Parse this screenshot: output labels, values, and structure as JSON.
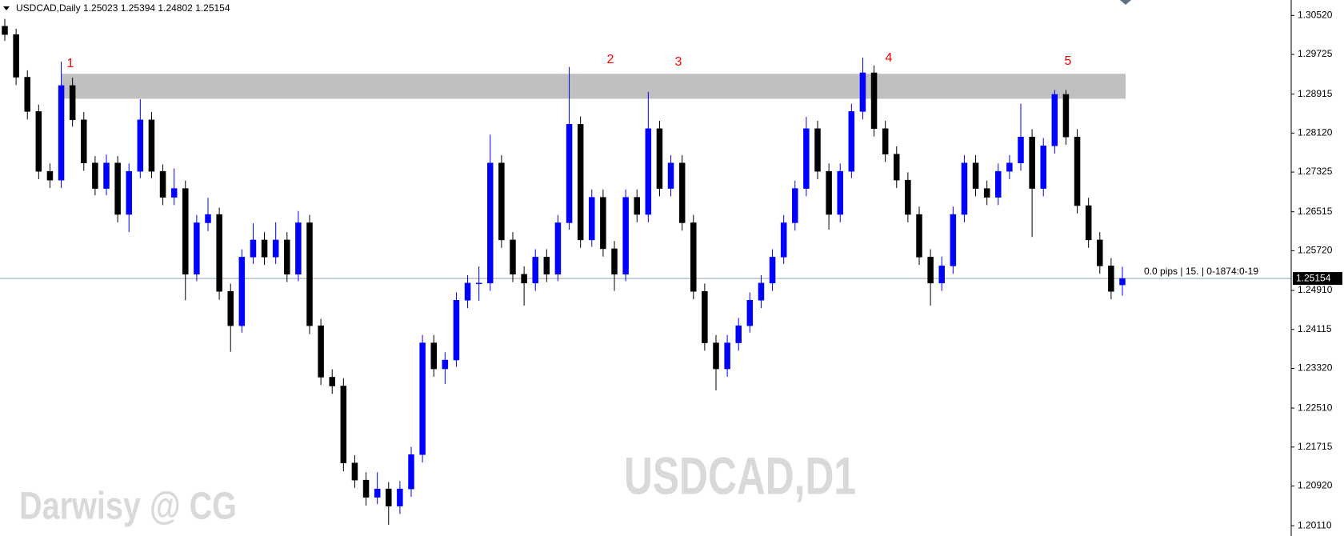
{
  "chart_data": {
    "type": "candlestick",
    "header": "USDCAD,Daily  1.25023 1.25394 1.24802 1.25154",
    "watermark": "USDCAD,D1",
    "credit": "Darwisy @ CG",
    "info": "0.0 pips | 15. | 0-1874:0-19",
    "annotations": [
      "1",
      "2",
      "3",
      "4",
      "5"
    ],
    "up_color": "#0000ff",
    "down_color": "#000000",
    "price_line": 1.25154,
    "zone": [
      1.2882,
      1.2933
    ],
    "ylim": [
      1.199,
      1.30835
    ],
    "yticks": [
      {
        "value": 1.3052,
        "label": "1.30520"
      },
      1.29725,
      1.28915,
      {
        "value": 1.2812,
        "label": "1.28120"
      },
      1.27325,
      1.26515,
      {
        "value": 1.2572,
        "label": "1.25720"
      },
      {
        "value": 1.2491,
        "label": "1.24910"
      },
      1.24115,
      {
        "value": 1.2332,
        "label": "1.23320"
      },
      {
        "value": 1.2251,
        "label": "1.22510"
      },
      1.21715,
      {
        "value": 1.2092,
        "label": "1.20920"
      },
      {
        "value": 1.2011,
        "label": "1.20110"
      }
    ],
    "ohlc": [
      [
        1.303,
        1.3045,
        1.3,
        1.3013
      ],
      [
        1.3013,
        1.3025,
        1.291,
        1.2926
      ],
      [
        1.2926,
        1.294,
        1.284,
        1.2856
      ],
      [
        1.2856,
        1.287,
        1.2718,
        1.2734
      ],
      [
        1.2734,
        1.275,
        1.27,
        1.2716
      ],
      [
        1.2716,
        1.2958,
        1.27,
        1.2909
      ],
      [
        1.2909,
        1.2925,
        1.2825,
        1.2839
      ],
      [
        1.2839,
        1.2855,
        1.2735,
        1.2751
      ],
      [
        1.2751,
        1.2765,
        1.2685,
        1.2699
      ],
      [
        1.2699,
        1.2768,
        1.2685,
        1.2751
      ],
      [
        1.2751,
        1.2765,
        1.263,
        1.2646
      ],
      [
        1.2646,
        1.275,
        1.261,
        1.2734
      ],
      [
        1.2734,
        1.2881,
        1.272,
        1.2839
      ],
      [
        1.2839,
        1.2855,
        1.272,
        1.2734
      ],
      [
        1.2734,
        1.2748,
        1.2665,
        1.2681
      ],
      [
        1.2681,
        1.274,
        1.2665,
        1.2699
      ],
      [
        1.2699,
        1.2715,
        1.2471,
        1.2524
      ],
      [
        1.2524,
        1.2645,
        1.251,
        1.2629
      ],
      [
        1.2629,
        1.268,
        1.2612,
        1.2646
      ],
      [
        1.2646,
        1.266,
        1.2472,
        1.2489
      ],
      [
        1.2489,
        1.2505,
        1.2366,
        1.2419
      ],
      [
        1.2419,
        1.2575,
        1.2405,
        1.2559
      ],
      [
        1.2559,
        1.2628,
        1.2545,
        1.2594
      ],
      [
        1.2594,
        1.261,
        1.2543,
        1.2559
      ],
      [
        1.2559,
        1.263,
        1.2545,
        1.2594
      ],
      [
        1.2594,
        1.261,
        1.2508,
        1.2524
      ],
      [
        1.2524,
        1.2653,
        1.251,
        1.2629
      ],
      [
        1.2629,
        1.2645,
        1.2402,
        1.2419
      ],
      [
        1.2419,
        1.2433,
        1.2298,
        1.2314
      ],
      [
        1.2314,
        1.233,
        1.228,
        1.2296
      ],
      [
        1.2296,
        1.2312,
        1.2122,
        1.2139
      ],
      [
        1.2139,
        1.2155,
        1.2088,
        1.2104
      ],
      [
        1.2104,
        1.212,
        1.2052,
        1.2069
      ],
      [
        1.2069,
        1.212,
        1.2055,
        1.2086
      ],
      [
        1.2086,
        1.21,
        1.2013,
        1.2051
      ],
      [
        1.2051,
        1.2102,
        1.2035,
        1.2086
      ],
      [
        1.2086,
        1.2172,
        1.207,
        1.2156
      ],
      [
        1.2156,
        1.24,
        1.214,
        1.2384
      ],
      [
        1.2384,
        1.24,
        1.2315,
        1.2331
      ],
      [
        1.2331,
        1.2365,
        1.23,
        1.2349
      ],
      [
        1.2349,
        1.2487,
        1.2335,
        1.2471
      ],
      [
        1.2471,
        1.2522,
        1.2455,
        1.2506
      ],
      [
        1.2506,
        1.254,
        1.247,
        1.2506
      ],
      [
        1.2506,
        1.2809,
        1.249,
        1.2751
      ],
      [
        1.2751,
        1.2767,
        1.2578,
        1.2594
      ],
      [
        1.2594,
        1.261,
        1.2508,
        1.2524
      ],
      [
        1.2524,
        1.254,
        1.246,
        1.2506
      ],
      [
        1.2506,
        1.2575,
        1.249,
        1.2559
      ],
      [
        1.2559,
        1.2575,
        1.2508,
        1.2524
      ],
      [
        1.2524,
        1.2645,
        1.251,
        1.2629
      ],
      [
        1.2629,
        1.2947,
        1.2615,
        1.283
      ],
      [
        1.283,
        1.2846,
        1.2578,
        1.2594
      ],
      [
        1.2594,
        1.2697,
        1.258,
        1.2681
      ],
      [
        1.2681,
        1.2697,
        1.256,
        1.2576
      ],
      [
        1.2576,
        1.2592,
        1.249,
        1.2524
      ],
      [
        1.2524,
        1.2697,
        1.251,
        1.2681
      ],
      [
        1.2681,
        1.2697,
        1.263,
        1.2646
      ],
      [
        1.2646,
        1.2896,
        1.263,
        1.2821
      ],
      [
        1.2821,
        1.2837,
        1.2683,
        1.2699
      ],
      [
        1.2699,
        1.2767,
        1.2683,
        1.2751
      ],
      [
        1.2751,
        1.2767,
        1.2613,
        1.2629
      ],
      [
        1.2629,
        1.2645,
        1.2473,
        1.2489
      ],
      [
        1.2489,
        1.2505,
        1.2368,
        1.2384
      ],
      [
        1.2384,
        1.24,
        1.2287,
        1.2331
      ],
      [
        1.2331,
        1.24,
        1.2315,
        1.2384
      ],
      [
        1.2384,
        1.2435,
        1.2368,
        1.2419
      ],
      [
        1.2419,
        1.2487,
        1.2405,
        1.2471
      ],
      [
        1.2471,
        1.2522,
        1.2455,
        1.2506
      ],
      [
        1.2506,
        1.2575,
        1.249,
        1.2559
      ],
      [
        1.2559,
        1.2645,
        1.2545,
        1.2629
      ],
      [
        1.2629,
        1.2715,
        1.2613,
        1.2699
      ],
      [
        1.2699,
        1.2845,
        1.2683,
        1.2821
      ],
      [
        1.2821,
        1.2837,
        1.2718,
        1.2734
      ],
      [
        1.2734,
        1.275,
        1.2615,
        1.2646
      ],
      [
        1.2646,
        1.275,
        1.263,
        1.2734
      ],
      [
        1.2734,
        1.2872,
        1.272,
        1.2856
      ],
      [
        1.2856,
        1.2966,
        1.284,
        1.2935
      ],
      [
        1.2935,
        1.295,
        1.2805,
        1.2821
      ],
      [
        1.2821,
        1.2837,
        1.2753,
        1.2769
      ],
      [
        1.2769,
        1.2785,
        1.27,
        1.2716
      ],
      [
        1.2716,
        1.2732,
        1.263,
        1.2646
      ],
      [
        1.2646,
        1.2662,
        1.2543,
        1.2559
      ],
      [
        1.2559,
        1.2575,
        1.246,
        1.2506
      ],
      [
        1.2506,
        1.256,
        1.249,
        1.2541
      ],
      [
        1.2541,
        1.2662,
        1.2525,
        1.2646
      ],
      [
        1.2646,
        1.2767,
        1.263,
        1.2751
      ],
      [
        1.2751,
        1.2767,
        1.2683,
        1.2699
      ],
      [
        1.2699,
        1.2715,
        1.2665,
        1.2681
      ],
      [
        1.2681,
        1.275,
        1.2665,
        1.2734
      ],
      [
        1.2734,
        1.2767,
        1.2718,
        1.2751
      ],
      [
        1.2751,
        1.2872,
        1.2735,
        1.2804
      ],
      [
        1.2804,
        1.282,
        1.26,
        1.2699
      ],
      [
        1.2699,
        1.2802,
        1.2683,
        1.2786
      ],
      [
        1.2786,
        1.29,
        1.277,
        1.2891
      ],
      [
        1.2891,
        1.29,
        1.2788,
        1.2804
      ],
      [
        1.2804,
        1.282,
        1.2648,
        1.2664
      ],
      [
        1.2664,
        1.268,
        1.2578,
        1.2594
      ],
      [
        1.2594,
        1.261,
        1.2525,
        1.2541
      ],
      [
        1.2541,
        1.2557,
        1.2473,
        1.2489
      ],
      [
        1.25023,
        1.25394,
        1.24802,
        1.25154
      ]
    ]
  }
}
